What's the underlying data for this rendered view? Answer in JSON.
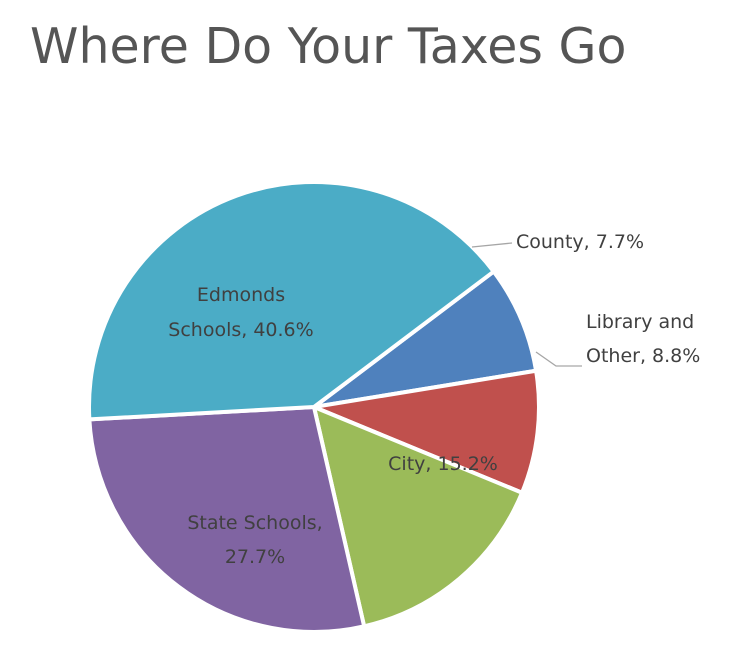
{
  "title": "Where Do Your Taxes Go",
  "chart_data": {
    "type": "pie",
    "title": "Where Do Your Taxes Go",
    "legend": "none",
    "slices": [
      {
        "key": "county",
        "label": [
          "County, 7.7%"
        ],
        "value": 7.7,
        "color": "#4f81bd"
      },
      {
        "key": "library-and-other",
        "label": [
          "Library and",
          "Other, 8.8%"
        ],
        "value": 8.8,
        "color": "#c0504d"
      },
      {
        "key": "city",
        "label": [
          "City, 15.2%"
        ],
        "value": 15.2,
        "color": "#9bbb59"
      },
      {
        "key": "state-schools",
        "label": [
          "State Schools,",
          "27.7%"
        ],
        "value": 27.7,
        "color": "#8064a2"
      },
      {
        "key": "edmonds-schools",
        "label": [
          "Edmonds",
          "Schools, 40.6%"
        ],
        "value": 40.6,
        "color": "#4bacc6"
      }
    ]
  }
}
